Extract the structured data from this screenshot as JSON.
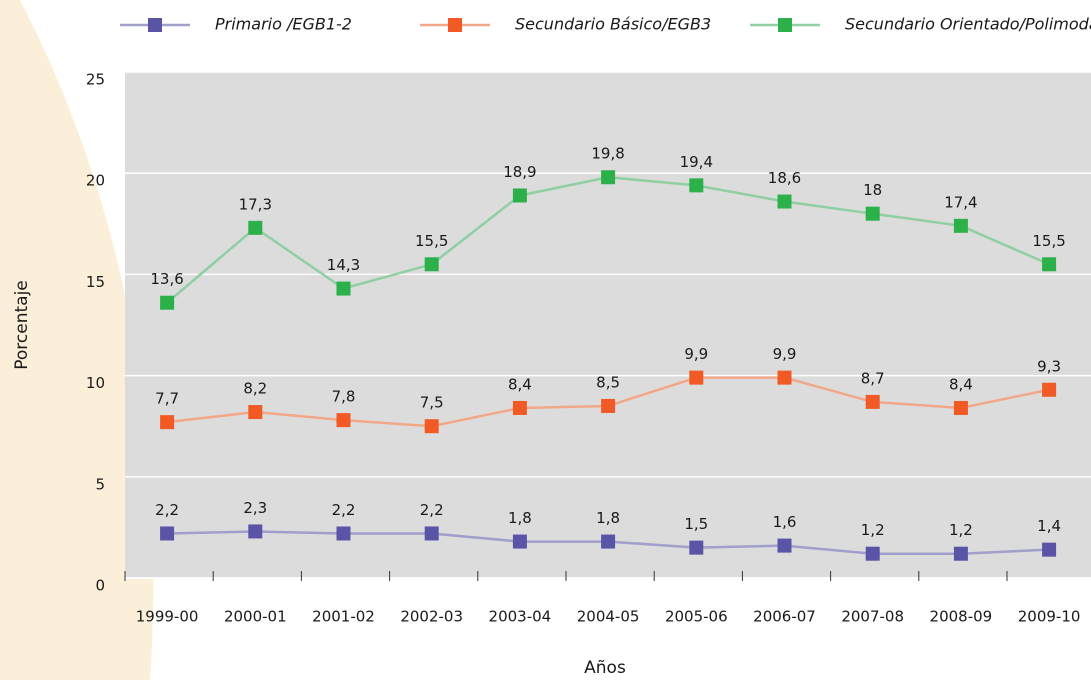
{
  "chart_data": {
    "type": "line",
    "x_label": "Años",
    "y_label": "Porcentaje",
    "categories": [
      "1999-00",
      "2000-01",
      "2001-02",
      "2002-03",
      "2003-04",
      "2004-05",
      "2005-06",
      "2006-07",
      "2007-08",
      "2008-09",
      "2009-10"
    ],
    "series": [
      {
        "name": "Primario /EGB1-2",
        "color": "#5a54a6",
        "line_color": "#a19fcc",
        "values": [
          2.2,
          2.3,
          2.2,
          2.2,
          1.8,
          1.8,
          1.5,
          1.6,
          1.2,
          1.2,
          1.4
        ],
        "value_labels": [
          "2,2",
          "2,3",
          "2,2",
          "2,2",
          "1,8",
          "1,8",
          "1,5",
          "1,6",
          "1,2",
          "1,2",
          "1,4"
        ]
      },
      {
        "name": "Secundario Básico/EGB3",
        "color": "#f15a24",
        "line_color": "#f2a888",
        "values": [
          7.7,
          8.2,
          7.8,
          7.5,
          8.4,
          8.5,
          9.9,
          9.9,
          8.7,
          8.4,
          9.3
        ],
        "value_labels": [
          "7,7",
          "8,2",
          "7,8",
          "7,5",
          "8,4",
          "8,5",
          "9,9",
          "9,9",
          "8,7",
          "8,4",
          "9,3"
        ]
      },
      {
        "name": "Secundario Orientado/Polimodal",
        "color": "#2bb04a",
        "line_color": "#8fcfa2",
        "values": [
          13.6,
          17.3,
          14.3,
          15.5,
          18.9,
          19.8,
          19.4,
          18.6,
          18,
          17.4,
          15.5
        ],
        "value_labels": [
          "13,6",
          "17,3",
          "14,3",
          "15,5",
          "18,9",
          "19,8",
          "19,4",
          "18,6",
          "18",
          "17,4",
          "15,5"
        ]
      }
    ],
    "ylim": [
      0,
      25
    ],
    "yticks": [
      0,
      5,
      10,
      15,
      20,
      25
    ],
    "grid": true,
    "legend": "top"
  }
}
